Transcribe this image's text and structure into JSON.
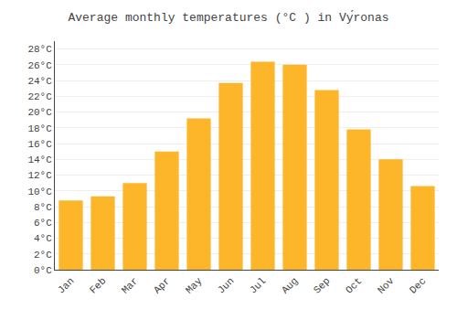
{
  "chart_data": {
    "type": "bar",
    "title": "Average monthly temperatures (°C ) in Vу́ronas",
    "categories": [
      "Jan",
      "Feb",
      "Mar",
      "Apr",
      "May",
      "Jun",
      "Jul",
      "Aug",
      "Sep",
      "Oct",
      "Nov",
      "Dec"
    ],
    "values": [
      8.8,
      9.3,
      11.0,
      15.0,
      19.2,
      23.7,
      26.4,
      26.0,
      22.8,
      17.8,
      14.0,
      10.6
    ],
    "color": "#FDB62A",
    "ylim": [
      0,
      29
    ],
    "yticks": [
      {
        "value": 0,
        "label": "0°C"
      },
      {
        "value": 2,
        "label": "2°C"
      },
      {
        "value": 4,
        "label": "4°C"
      },
      {
        "value": 6,
        "label": "6°C"
      },
      {
        "value": 8,
        "label": "8°C"
      },
      {
        "value": 10,
        "label": "10°C"
      },
      {
        "value": 12,
        "label": "12°C"
      },
      {
        "value": 14,
        "label": "14°C"
      },
      {
        "value": 16,
        "label": "16°C"
      },
      {
        "value": 18,
        "label": "18°C"
      },
      {
        "value": 20,
        "label": "20°C"
      },
      {
        "value": 22,
        "label": "22°C"
      },
      {
        "value": 24,
        "label": "24°C"
      },
      {
        "value": 26,
        "label": "26°C"
      },
      {
        "value": 28,
        "label": "28°C"
      }
    ],
    "grid": true
  }
}
